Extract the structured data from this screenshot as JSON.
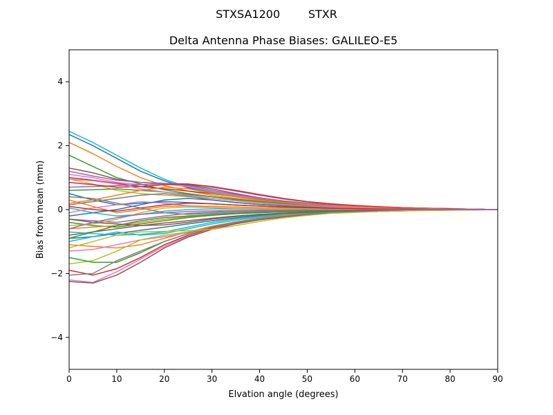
{
  "figure": {
    "suptitle": "STXSA1200        STXR"
  },
  "chart_data": {
    "type": "line",
    "title": "Delta Antenna Phase Biases: GALILEO-E5",
    "xlabel": "Elvation angle (degrees)",
    "ylabel": "Bias from mean (mm)",
    "xlim": [
      0,
      90
    ],
    "ylim": [
      -5,
      5
    ],
    "xticks": [
      0,
      10,
      20,
      30,
      40,
      50,
      60,
      70,
      80,
      90
    ],
    "yticks": [
      -4,
      -2,
      0,
      2,
      4
    ],
    "grid": false,
    "legend": "none",
    "x": [
      0,
      5,
      10,
      15,
      20,
      25,
      30,
      35,
      40,
      45,
      50,
      55,
      60,
      65,
      70,
      75,
      80,
      85,
      90
    ],
    "series": [
      {
        "color": "#17becf",
        "values": [
          2.45,
          2.1,
          1.7,
          1.3,
          0.95,
          0.7,
          0.55,
          0.42,
          0.32,
          0.24,
          0.18,
          0.13,
          0.1,
          0.07,
          0.05,
          0.04,
          0.02,
          0.01,
          0.0
        ]
      },
      {
        "color": "#1f77b4",
        "values": [
          2.35,
          2.0,
          1.6,
          1.2,
          0.9,
          0.68,
          0.52,
          0.4,
          0.3,
          0.22,
          0.17,
          0.12,
          0.09,
          0.06,
          0.05,
          0.03,
          0.02,
          0.01,
          0.0
        ]
      },
      {
        "color": "#ff7f0e",
        "values": [
          2.1,
          1.75,
          1.35,
          1.0,
          0.75,
          0.58,
          0.45,
          0.35,
          0.27,
          0.2,
          0.15,
          0.11,
          0.08,
          0.06,
          0.04,
          0.03,
          0.02,
          0.01,
          0.0
        ]
      },
      {
        "color": "#2ca02c",
        "values": [
          1.7,
          1.35,
          1.0,
          0.8,
          0.62,
          0.5,
          0.4,
          0.31,
          0.24,
          0.18,
          0.13,
          0.1,
          0.07,
          0.05,
          0.04,
          0.03,
          0.02,
          0.01,
          0.0
        ]
      },
      {
        "color": "#8c564b",
        "values": [
          1.3,
          1.15,
          0.95,
          0.85,
          0.82,
          0.78,
          0.65,
          0.5,
          0.37,
          0.27,
          0.2,
          0.15,
          0.11,
          0.08,
          0.06,
          0.04,
          0.03,
          0.01,
          0.0
        ]
      },
      {
        "color": "#9467bd",
        "values": [
          1.2,
          1.05,
          0.92,
          0.85,
          0.82,
          0.75,
          0.6,
          0.47,
          0.36,
          0.26,
          0.19,
          0.14,
          0.1,
          0.07,
          0.05,
          0.04,
          0.03,
          0.01,
          0.0
        ]
      },
      {
        "color": "#e377c2",
        "values": [
          1.1,
          1.0,
          0.85,
          0.78,
          0.8,
          0.72,
          0.58,
          0.44,
          0.33,
          0.24,
          0.17,
          0.12,
          0.09,
          0.06,
          0.05,
          0.03,
          0.02,
          0.01,
          0.0
        ]
      },
      {
        "color": "#d62728",
        "values": [
          1.0,
          0.92,
          0.82,
          0.72,
          0.65,
          0.58,
          0.5,
          0.4,
          0.31,
          0.23,
          0.16,
          0.12,
          0.08,
          0.06,
          0.04,
          0.03,
          0.02,
          0.01,
          0.0
        ]
      },
      {
        "color": "#bcbd22",
        "values": [
          0.95,
          0.8,
          0.6,
          0.5,
          0.45,
          0.4,
          0.35,
          0.28,
          0.22,
          0.17,
          0.12,
          0.09,
          0.07,
          0.05,
          0.03,
          0.02,
          0.02,
          0.01,
          0.0
        ]
      },
      {
        "color": "#2ca02c",
        "values": [
          0.6,
          0.62,
          0.65,
          0.6,
          0.55,
          0.48,
          0.4,
          0.32,
          0.25,
          0.19,
          0.14,
          0.1,
          0.07,
          0.05,
          0.04,
          0.03,
          0.02,
          0.01,
          0.0
        ]
      },
      {
        "color": "#1f77b4",
        "values": [
          0.5,
          0.3,
          0.15,
          0.2,
          0.25,
          0.22,
          0.18,
          0.14,
          0.11,
          0.08,
          0.06,
          0.05,
          0.04,
          0.03,
          0.02,
          0.02,
          0.01,
          0.01,
          0.0
        ]
      },
      {
        "color": "#ff7f0e",
        "values": [
          0.3,
          0.1,
          -0.1,
          0.0,
          0.1,
          0.12,
          0.1,
          0.08,
          0.06,
          0.05,
          0.04,
          0.03,
          0.02,
          0.02,
          0.01,
          0.01,
          0.01,
          0.0,
          0.0
        ]
      },
      {
        "color": "#7f7f7f",
        "values": [
          0.15,
          0.25,
          0.35,
          0.45,
          0.5,
          0.42,
          0.3,
          0.22,
          0.16,
          0.12,
          0.09,
          0.07,
          0.05,
          0.04,
          0.03,
          0.02,
          0.01,
          0.01,
          0.0
        ]
      },
      {
        "color": "#17becf",
        "values": [
          0.05,
          -0.1,
          -0.2,
          -0.15,
          -0.05,
          0.0,
          0.02,
          0.02,
          0.02,
          0.01,
          0.01,
          0.01,
          0.01,
          0.0,
          0.0,
          0.0,
          0.0,
          0.0,
          0.0
        ]
      },
      {
        "color": "#e377c2",
        "values": [
          -0.1,
          0.05,
          0.15,
          0.25,
          0.2,
          0.12,
          0.06,
          0.03,
          0.02,
          0.01,
          0.0,
          0.0,
          0.0,
          0.0,
          0.0,
          0.0,
          0.0,
          0.0,
          0.0
        ]
      },
      {
        "color": "#9467bd",
        "values": [
          -0.3,
          -0.35,
          -0.4,
          -0.3,
          -0.2,
          -0.12,
          -0.08,
          -0.05,
          -0.04,
          -0.03,
          -0.02,
          -0.02,
          -0.01,
          -0.01,
          -0.01,
          0.0,
          0.0,
          0.0,
          0.0
        ]
      },
      {
        "color": "#2ca02c",
        "values": [
          -0.4,
          -0.5,
          -0.55,
          -0.45,
          -0.35,
          -0.25,
          -0.18,
          -0.13,
          -0.1,
          -0.07,
          -0.05,
          -0.04,
          -0.03,
          -0.02,
          -0.01,
          -0.01,
          -0.01,
          0.0,
          0.0
        ]
      },
      {
        "color": "#ff7f0e",
        "values": [
          -0.6,
          -0.55,
          -0.5,
          -0.4,
          -0.3,
          -0.22,
          -0.16,
          -0.12,
          -0.09,
          -0.07,
          -0.05,
          -0.04,
          -0.03,
          -0.02,
          -0.01,
          -0.01,
          -0.01,
          0.0,
          0.0
        ]
      },
      {
        "color": "#8c564b",
        "values": [
          -0.8,
          -0.7,
          -0.6,
          -0.5,
          -0.42,
          -0.35,
          -0.27,
          -0.2,
          -0.15,
          -0.11,
          -0.08,
          -0.06,
          -0.04,
          -0.03,
          -0.02,
          -0.01,
          -0.01,
          0.0,
          0.0
        ]
      },
      {
        "color": "#1f77b4",
        "values": [
          -0.9,
          -0.85,
          -0.75,
          -0.65,
          -0.55,
          -0.45,
          -0.35,
          -0.26,
          -0.19,
          -0.14,
          -0.1,
          -0.07,
          -0.05,
          -0.04,
          -0.03,
          -0.02,
          -0.01,
          0.0,
          0.0
        ]
      },
      {
        "color": "#17becf",
        "values": [
          -1.0,
          -0.85,
          -0.7,
          -0.8,
          -0.75,
          -0.6,
          -0.45,
          -0.33,
          -0.24,
          -0.17,
          -0.12,
          -0.09,
          -0.06,
          -0.04,
          -0.03,
          -0.02,
          -0.01,
          0.0,
          0.0
        ]
      },
      {
        "color": "#ff7f0e",
        "values": [
          -1.1,
          -1.15,
          -1.2,
          -1.1,
          -0.9,
          -0.7,
          -0.52,
          -0.38,
          -0.27,
          -0.19,
          -0.13,
          -0.09,
          -0.07,
          -0.05,
          -0.03,
          -0.02,
          -0.01,
          0.0,
          0.0
        ]
      },
      {
        "color": "#e377c2",
        "values": [
          -1.3,
          -1.25,
          -1.1,
          -0.95,
          -0.85,
          -0.72,
          -0.56,
          -0.42,
          -0.3,
          -0.21,
          -0.15,
          -0.11,
          -0.08,
          -0.05,
          -0.04,
          -0.02,
          -0.01,
          0.0,
          0.0
        ]
      },
      {
        "color": "#bcbd22",
        "values": [
          -1.7,
          -1.6,
          -1.3,
          -0.95,
          -0.8,
          -0.7,
          -0.6,
          -0.45,
          -0.32,
          -0.23,
          -0.16,
          -0.11,
          -0.08,
          -0.06,
          -0.04,
          -0.03,
          -0.02,
          -0.01,
          0.0
        ]
      },
      {
        "color": "#2ca02c",
        "values": [
          -1.5,
          -1.65,
          -1.65,
          -1.35,
          -1.0,
          -0.75,
          -0.55,
          -0.4,
          -0.29,
          -0.21,
          -0.15,
          -0.1,
          -0.07,
          -0.05,
          -0.03,
          -0.02,
          -0.01,
          0.0,
          0.0
        ]
      },
      {
        "color": "#d62728",
        "values": [
          -1.9,
          -2.05,
          -1.85,
          -1.5,
          -1.1,
          -0.8,
          -0.58,
          -0.42,
          -0.3,
          -0.22,
          -0.16,
          -0.11,
          -0.08,
          -0.06,
          -0.04,
          -0.02,
          -0.01,
          0.0,
          0.0
        ]
      },
      {
        "color": "#7f7f7f",
        "values": [
          -2.05,
          -2.0,
          -1.6,
          -1.3,
          -1.0,
          -0.75,
          -0.55,
          -0.4,
          -0.29,
          -0.21,
          -0.15,
          -0.1,
          -0.07,
          -0.05,
          -0.03,
          -0.02,
          -0.01,
          0.0,
          0.0
        ]
      },
      {
        "color": "#e377c2",
        "values": [
          -2.2,
          -2.28,
          -1.95,
          -1.55,
          -1.15,
          -0.83,
          -0.6,
          -0.43,
          -0.31,
          -0.22,
          -0.16,
          -0.11,
          -0.08,
          -0.06,
          -0.04,
          -0.02,
          -0.01,
          0.0,
          0.0
        ]
      },
      {
        "color": "#8c564b",
        "values": [
          -2.25,
          -2.3,
          -2.05,
          -1.65,
          -1.2,
          -0.86,
          -0.62,
          -0.44,
          -0.32,
          -0.23,
          -0.16,
          -0.11,
          -0.08,
          -0.06,
          -0.04,
          -0.02,
          -0.01,
          0.0,
          0.0
        ]
      },
      {
        "color": "#9467bd",
        "values": [
          0.7,
          0.72,
          0.75,
          0.78,
          0.82,
          0.8,
          0.7,
          0.58,
          0.45,
          0.33,
          0.24,
          0.17,
          0.12,
          0.09,
          0.06,
          0.04,
          0.03,
          0.01,
          0.0
        ]
      },
      {
        "color": "#d62728",
        "values": [
          0.85,
          0.78,
          0.7,
          0.72,
          0.78,
          0.8,
          0.72,
          0.6,
          0.47,
          0.35,
          0.25,
          0.18,
          0.13,
          0.09,
          0.06,
          0.04,
          0.03,
          0.01,
          0.0
        ]
      },
      {
        "color": "#bcbd22",
        "values": [
          -0.5,
          -0.45,
          -0.3,
          -0.1,
          0.05,
          0.08,
          0.06,
          0.04,
          0.03,
          0.02,
          0.02,
          0.01,
          0.01,
          0.01,
          0.0,
          0.0,
          0.0,
          0.0,
          0.0
        ]
      },
      {
        "color": "#17becf",
        "values": [
          -0.7,
          -0.75,
          -0.8,
          -0.78,
          -0.7,
          -0.55,
          -0.4,
          -0.29,
          -0.21,
          -0.15,
          -0.11,
          -0.08,
          -0.06,
          -0.04,
          -0.03,
          -0.02,
          -0.01,
          0.0,
          0.0
        ]
      },
      {
        "color": "#7f7f7f",
        "values": [
          0.4,
          0.35,
          0.2,
          0.05,
          -0.1,
          -0.15,
          -0.12,
          -0.09,
          -0.07,
          -0.05,
          -0.04,
          -0.03,
          -0.02,
          -0.01,
          -0.01,
          0.0,
          0.0,
          0.0,
          0.0
        ]
      },
      {
        "color": "#1f77b4",
        "values": [
          -0.2,
          -0.1,
          0.0,
          0.15,
          0.3,
          0.35,
          0.3,
          0.22,
          0.16,
          0.12,
          0.09,
          0.06,
          0.05,
          0.03,
          0.02,
          0.02,
          0.01,
          0.0,
          0.0
        ]
      },
      {
        "color": "#ff7f0e",
        "values": [
          0.2,
          0.3,
          0.45,
          0.6,
          0.7,
          0.65,
          0.52,
          0.4,
          0.3,
          0.22,
          0.16,
          0.12,
          0.09,
          0.06,
          0.04,
          0.03,
          0.02,
          0.01,
          0.0
        ]
      },
      {
        "color": "#2ca02c",
        "values": [
          -0.9,
          -0.7,
          -0.5,
          -0.35,
          -0.25,
          -0.2,
          -0.16,
          -0.12,
          -0.09,
          -0.07,
          -0.05,
          -0.04,
          -0.03,
          -0.02,
          -0.01,
          -0.01,
          -0.01,
          0.0,
          0.0
        ]
      },
      {
        "color": "#e377c2",
        "values": [
          0.95,
          0.9,
          0.8,
          0.65,
          0.55,
          0.45,
          0.35,
          0.27,
          0.2,
          0.15,
          0.11,
          0.08,
          0.06,
          0.04,
          0.03,
          0.02,
          0.01,
          0.01,
          0.0
        ]
      },
      {
        "color": "#8c564b",
        "values": [
          -0.3,
          -0.4,
          -0.45,
          -0.5,
          -0.48,
          -0.4,
          -0.3,
          -0.22,
          -0.16,
          -0.12,
          -0.09,
          -0.06,
          -0.05,
          -0.03,
          -0.02,
          -0.02,
          -0.01,
          0.0,
          0.0
        ]
      },
      {
        "color": "#bcbd22",
        "values": [
          -1.2,
          -1.0,
          -0.8,
          -0.7,
          -0.68,
          -0.66,
          -0.62,
          -0.5,
          -0.37,
          -0.26,
          -0.18,
          -0.12,
          -0.09,
          -0.06,
          -0.04,
          -0.03,
          -0.02,
          -0.01,
          0.0
        ]
      },
      {
        "color": "#d62728",
        "values": [
          0.1,
          0.0,
          -0.05,
          0.05,
          0.15,
          0.2,
          0.18,
          0.14,
          0.11,
          0.08,
          0.06,
          0.04,
          0.03,
          0.02,
          0.02,
          0.01,
          0.01,
          0.0,
          0.0
        ]
      },
      {
        "color": "#9467bd",
        "values": [
          -0.6,
          -0.4,
          -0.25,
          -0.15,
          -0.1,
          -0.06,
          -0.04,
          -0.03,
          -0.02,
          -0.02,
          -0.01,
          -0.01,
          -0.01,
          0.0,
          0.0,
          0.0,
          0.0,
          0.0,
          0.0
        ]
      }
    ]
  }
}
